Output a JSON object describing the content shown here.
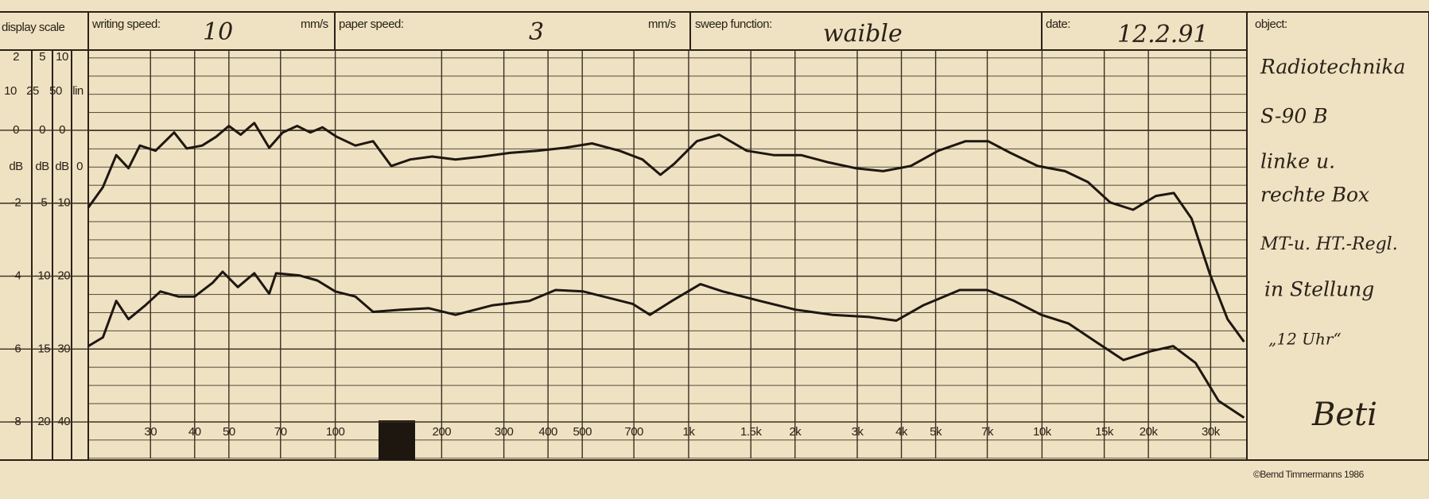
{
  "header": {
    "display_scale": "display scale",
    "writing_speed_label": "writing speed:",
    "writing_speed": "10",
    "writing_speed_unit": "mm/s",
    "paper_speed_label": "paper speed:",
    "paper_speed": "3",
    "paper_speed_unit": "mm/s",
    "sweep_function_label": "sweep function:",
    "sweep_function": "waible",
    "date_label": "date:",
    "date": "12.2.91",
    "object_label": "object:"
  },
  "scale": {
    "ranges": [
      "2",
      "5",
      "10"
    ],
    "ranges2": [
      "10",
      "25",
      "50",
      "lin"
    ],
    "units": [
      "dB",
      "dB",
      "dB",
      "0"
    ],
    "col1": [
      "0",
      "-2",
      "-4",
      "-6",
      "-8"
    ],
    "col2": [
      "0",
      "-5",
      "-10",
      "-15",
      "-20"
    ]
  },
  "object_notes": [
    "Radiotechnika",
    "S-90 B",
    "linke u.",
    "rechte Box",
    "MT-u. HT.-Regl.",
    "in Stellung",
    "„12 Uhr“",
    "Beti"
  ],
  "footer": "©Bernd Timmermanns 1986",
  "chart_data": {
    "type": "line",
    "log_x": true,
    "grid": true,
    "color": "#1e1710",
    "xlim": [
      20,
      38000
    ],
    "ylim": [
      -45,
      11
    ],
    "xticks": [
      30,
      40,
      50,
      70,
      100,
      200,
      300,
      400,
      500,
      700,
      {
        "value": 1000,
        "label": "1k"
      },
      {
        "value": 1500,
        "label": "1.5k"
      },
      {
        "value": 2000,
        "label": "2k"
      },
      {
        "value": 3000,
        "label": "3k"
      },
      {
        "value": 4000,
        "label": "4k"
      },
      {
        "value": 5000,
        "label": "5k"
      },
      {
        "value": 7000,
        "label": "7k"
      },
      {
        "value": 10000,
        "label": "10k"
      },
      {
        "value": 15000,
        "label": "15k"
      },
      {
        "value": 20000,
        "label": "20k"
      },
      {
        "value": 30000,
        "label": "30k"
      }
    ],
    "yticks": [
      0,
      -10,
      -20,
      -30,
      -40
    ],
    "series": [
      {
        "color": "#1e1710",
        "x": [
          20,
          22,
          24,
          26,
          28,
          31,
          35,
          38,
          42,
          46,
          50,
          54,
          59,
          65,
          71,
          78,
          85,
          92,
          101,
          114,
          128,
          144,
          163,
          188,
          219,
          261,
          312,
          373,
          446,
          533,
          637,
          740,
          832,
          910,
          1055,
          1220,
          1460,
          1740,
          2080,
          2490,
          2970,
          3550,
          4250,
          5090,
          6080,
          7040,
          8140,
          9720,
          11620,
          13490,
          15600,
          18100,
          21000,
          23600,
          26500,
          29800,
          33500,
          37300
        ],
        "values": [
          -10.6,
          -7.8,
          -3.4,
          -5.2,
          -2.1,
          -2.8,
          -0.3,
          -2.5,
          -2.1,
          -0.9,
          0.6,
          -0.6,
          1.0,
          -2.4,
          -0.3,
          0.6,
          -0.3,
          0.4,
          -0.9,
          -2.1,
          -1.5,
          -4.9,
          -4.0,
          -3.6,
          -4.0,
          -3.6,
          -3.1,
          -2.8,
          -2.4,
          -1.8,
          -2.8,
          -4.0,
          -6.1,
          -4.6,
          -1.5,
          -0.6,
          -2.8,
          -3.4,
          -3.4,
          -4.4,
          -5.2,
          -5.6,
          -4.9,
          -2.8,
          -1.5,
          -1.5,
          -3.1,
          -4.9,
          -5.6,
          -7.1,
          -9.9,
          -10.9,
          -9.0,
          -8.6,
          -12.1,
          -19.6,
          -25.9,
          -29.0
        ]
      },
      {
        "color": "#1e1710",
        "x": [
          20,
          22,
          24,
          26,
          29,
          32,
          36,
          40,
          45,
          48,
          53,
          59,
          65,
          68,
          79,
          89,
          100,
          114,
          128,
          154,
          184,
          219,
          278,
          354,
          420,
          503,
          694,
          777,
          897,
          1080,
          1250,
          1590,
          2010,
          2550,
          3230,
          3870,
          4610,
          5850,
          6990,
          8340,
          9950,
          11900,
          14200,
          17000,
          20300,
          23500,
          27200,
          31600,
          37300
        ],
        "values": [
          -29.6,
          -28.4,
          -23.4,
          -25.9,
          -24.0,
          -22.1,
          -22.8,
          -22.8,
          -20.9,
          -19.4,
          -21.5,
          -19.6,
          -22.4,
          -19.6,
          -19.9,
          -20.6,
          -22.1,
          -22.8,
          -24.9,
          -24.6,
          -24.4,
          -25.3,
          -24.0,
          -23.4,
          -21.9,
          -22.1,
          -23.8,
          -25.3,
          -23.4,
          -21.1,
          -22.1,
          -23.4,
          -24.6,
          -25.3,
          -25.6,
          -26.1,
          -24.0,
          -21.9,
          -21.9,
          -23.4,
          -25.3,
          -26.5,
          -29.0,
          -31.5,
          -30.3,
          -29.6,
          -31.9,
          -37.1,
          -39.4
        ]
      }
    ]
  }
}
